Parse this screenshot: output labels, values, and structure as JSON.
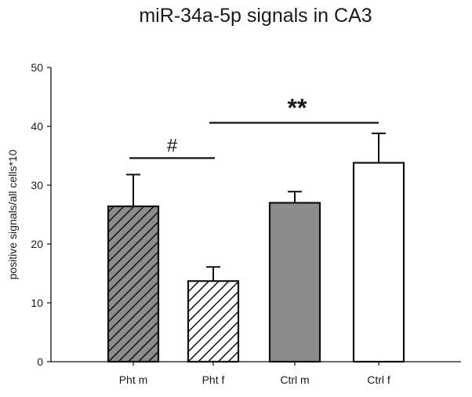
{
  "chart_data": {
    "type": "bar",
    "title": "miR-34a-5p signals in CA3",
    "xlabel": "",
    "ylabel": "positive signals/all cells*10",
    "ylim": [
      0,
      50
    ],
    "yticks": [
      "0",
      "10",
      "20",
      "30",
      "40",
      "50"
    ],
    "categories": [
      "Pht m",
      "Pht f",
      "Ctrl m",
      "Ctrl f"
    ],
    "values": [
      26.4,
      13.7,
      27.0,
      33.8
    ],
    "errors": [
      5.4,
      2.4,
      1.9,
      5.0
    ],
    "bar_styles": [
      "hatched-gray",
      "hatched-white",
      "solid-gray",
      "solid-white"
    ],
    "colors": {
      "gray": "#8c8c8c",
      "white": "#ffffff",
      "stroke": "#111111"
    },
    "annotations": [
      {
        "label": "#",
        "from": "Pht m",
        "to": "Pht f",
        "y": 34.6
      },
      {
        "label": "**",
        "from": "Pht f",
        "to": "Ctrl f",
        "y": 40.6
      }
    ],
    "grid": false,
    "legend": "none"
  }
}
